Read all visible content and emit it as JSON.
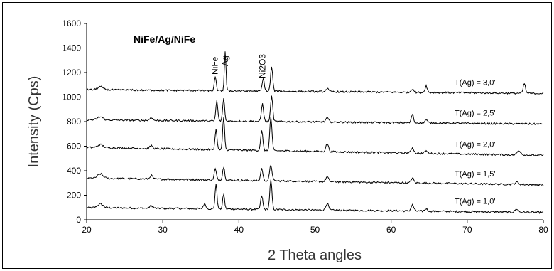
{
  "chart_data": {
    "type": "line",
    "title": "NiFe/Ag/NiFe",
    "xlabel": "2 Theta angles",
    "ylabel": "Intensity (Cps)",
    "xlim": [
      20,
      80
    ],
    "ylim": [
      0,
      1600
    ],
    "xticks": [
      20,
      30,
      40,
      50,
      60,
      70,
      80
    ],
    "yticks": [
      0,
      200,
      400,
      600,
      800,
      1000,
      1200,
      1400,
      1600
    ],
    "grid": false,
    "line_color": "#000000",
    "peak_annotations": [
      {
        "text": "NiFe",
        "x": 37.6
      },
      {
        "text": "Ag",
        "x": 38.2
      },
      {
        "text": "Ni2O3",
        "x": 43.3
      }
    ],
    "series": [
      {
        "name": "T(Ag) = 1,0'",
        "baseline": 100,
        "end": 60,
        "peaks": [
          {
            "x": 21.8,
            "h": 30,
            "w": 0.5
          },
          {
            "x": 28.5,
            "h": 20,
            "w": 0.3
          },
          {
            "x": 35.5,
            "h": 40,
            "w": 0.25
          },
          {
            "x": 37.0,
            "h": 200,
            "w": 0.18
          },
          {
            "x": 38.0,
            "h": 120,
            "w": 0.18
          },
          {
            "x": 43.0,
            "h": 110,
            "w": 0.2
          },
          {
            "x": 44.2,
            "h": 240,
            "w": 0.2
          },
          {
            "x": 51.6,
            "h": 55,
            "w": 0.25
          },
          {
            "x": 62.8,
            "h": 50,
            "w": 0.25
          },
          {
            "x": 64.6,
            "h": 20,
            "w": 0.25
          },
          {
            "x": 76.5,
            "h": 25,
            "w": 0.3
          }
        ]
      },
      {
        "name": "T(Ag) = 1,5'",
        "baseline": 340,
        "end": 285,
        "peaks": [
          {
            "x": 21.8,
            "h": 35,
            "w": 0.5
          },
          {
            "x": 28.5,
            "h": 30,
            "w": 0.25
          },
          {
            "x": 36.9,
            "h": 90,
            "w": 0.2
          },
          {
            "x": 38.0,
            "h": 105,
            "w": 0.2
          },
          {
            "x": 43.0,
            "h": 100,
            "w": 0.2
          },
          {
            "x": 44.2,
            "h": 130,
            "w": 0.22
          },
          {
            "x": 51.6,
            "h": 40,
            "w": 0.25
          },
          {
            "x": 62.8,
            "h": 40,
            "w": 0.25
          },
          {
            "x": 76.5,
            "h": 20,
            "w": 0.3
          }
        ]
      },
      {
        "name": "T(Ag) = 2,0'",
        "baseline": 590,
        "end": 525,
        "peaks": [
          {
            "x": 21.8,
            "h": 25,
            "w": 0.5
          },
          {
            "x": 28.5,
            "h": 25,
            "w": 0.25
          },
          {
            "x": 37.0,
            "h": 165,
            "w": 0.18
          },
          {
            "x": 38.0,
            "h": 260,
            "w": 0.18
          },
          {
            "x": 43.0,
            "h": 160,
            "w": 0.2
          },
          {
            "x": 44.2,
            "h": 275,
            "w": 0.2
          },
          {
            "x": 51.6,
            "h": 65,
            "w": 0.25
          },
          {
            "x": 62.8,
            "h": 45,
            "w": 0.25
          },
          {
            "x": 64.6,
            "h": 20,
            "w": 0.25
          },
          {
            "x": 76.8,
            "h": 35,
            "w": 0.35
          }
        ]
      },
      {
        "name": "T(Ag) = 2,5'",
        "baseline": 815,
        "end": 780,
        "peaks": [
          {
            "x": 21.8,
            "h": 25,
            "w": 0.5
          },
          {
            "x": 28.5,
            "h": 25,
            "w": 0.25
          },
          {
            "x": 37.1,
            "h": 165,
            "w": 0.18
          },
          {
            "x": 38.0,
            "h": 185,
            "w": 0.18
          },
          {
            "x": 43.1,
            "h": 145,
            "w": 0.2
          },
          {
            "x": 44.3,
            "h": 205,
            "w": 0.2
          },
          {
            "x": 51.6,
            "h": 35,
            "w": 0.25
          },
          {
            "x": 62.8,
            "h": 70,
            "w": 0.2
          },
          {
            "x": 64.6,
            "h": 25,
            "w": 0.25
          }
        ]
      },
      {
        "name": "T(Ag) = 3,0'",
        "baseline": 1060,
        "end": 1030,
        "peaks": [
          {
            "x": 21.8,
            "h": 25,
            "w": 0.5
          },
          {
            "x": 36.9,
            "h": 110,
            "w": 0.18
          },
          {
            "x": 38.2,
            "h": 320,
            "w": 0.15
          },
          {
            "x": 43.2,
            "h": 100,
            "w": 0.2
          },
          {
            "x": 44.3,
            "h": 195,
            "w": 0.2
          },
          {
            "x": 51.6,
            "h": 25,
            "w": 0.25
          },
          {
            "x": 62.8,
            "h": 30,
            "w": 0.25
          },
          {
            "x": 64.6,
            "h": 55,
            "w": 0.2
          },
          {
            "x": 77.5,
            "h": 80,
            "w": 0.2
          }
        ]
      }
    ]
  }
}
